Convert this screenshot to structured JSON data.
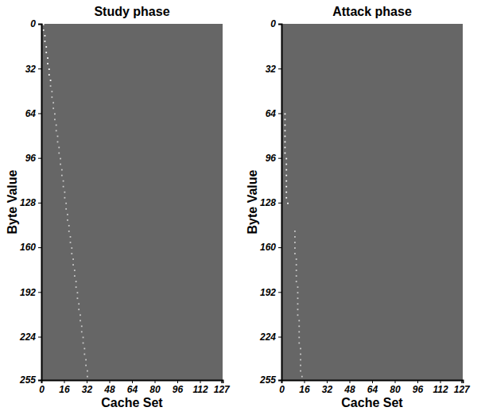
{
  "chart_data": [
    {
      "type": "heatmap",
      "title": "Study phase",
      "x_label": "Cache Set",
      "y_label": "Byte Value",
      "xlim": [
        0,
        128
      ],
      "xticks": [
        0,
        16,
        32,
        48,
        64,
        80,
        96,
        112,
        127
      ],
      "ylim": [
        0,
        255
      ],
      "yticks": [
        0,
        32,
        64,
        96,
        128,
        160,
        192,
        224,
        255
      ],
      "zlim": [
        0,
        1
      ],
      "fill_value": 0.4,
      "cells": [
        [
          1,
          0,
          1
        ],
        [
          1,
          4,
          1
        ],
        [
          2,
          8,
          1
        ],
        [
          2,
          12,
          1
        ],
        [
          3,
          16,
          1
        ],
        [
          3,
          20,
          1
        ],
        [
          4,
          24,
          1
        ],
        [
          4,
          28,
          1
        ],
        [
          5,
          32,
          1
        ],
        [
          5,
          36,
          1
        ],
        [
          6,
          40,
          1
        ],
        [
          6,
          44,
          0.8
        ],
        [
          7,
          48,
          0.8
        ],
        [
          7,
          52,
          0.8
        ],
        [
          8,
          56,
          0.8
        ],
        [
          8,
          60,
          0.8
        ],
        [
          9,
          64,
          0.8
        ],
        [
          9,
          68,
          0.8
        ],
        [
          10,
          72,
          0.8
        ],
        [
          10,
          76,
          0.8
        ],
        [
          11,
          80,
          0.8
        ],
        [
          11,
          84,
          0.8
        ],
        [
          12,
          88,
          0.8
        ],
        [
          12,
          92,
          0.8
        ],
        [
          13,
          96,
          0.8
        ],
        [
          13,
          100,
          0.8
        ],
        [
          14,
          104,
          0.8
        ],
        [
          14,
          108,
          0.8
        ],
        [
          15,
          112,
          0.8
        ],
        [
          15,
          116,
          0.8
        ],
        [
          16,
          120,
          0.8
        ],
        [
          16,
          124,
          0.8
        ],
        [
          17,
          128,
          0.8
        ],
        [
          17,
          132,
          0.8
        ],
        [
          18,
          136,
          0.8
        ],
        [
          18,
          140,
          0.8
        ],
        [
          19,
          144,
          0.8
        ],
        [
          19,
          148,
          0.8
        ],
        [
          20,
          152,
          0.8
        ],
        [
          20,
          156,
          0.8
        ],
        [
          21,
          160,
          0.8
        ],
        [
          21,
          164,
          0.8
        ],
        [
          22,
          168,
          0.8
        ],
        [
          22,
          172,
          0.8
        ],
        [
          23,
          176,
          0.8
        ],
        [
          23,
          180,
          0.8
        ],
        [
          24,
          184,
          0.8
        ],
        [
          24,
          188,
          0.8
        ],
        [
          25,
          192,
          0.8
        ],
        [
          25,
          196,
          0.8
        ],
        [
          26,
          200,
          0.8
        ],
        [
          26,
          204,
          0.8
        ],
        [
          27,
          208,
          0.8
        ],
        [
          27,
          212,
          0.8
        ],
        [
          28,
          216,
          0.8
        ],
        [
          28,
          220,
          0.8
        ],
        [
          29,
          224,
          0.8
        ],
        [
          29,
          228,
          0.8
        ],
        [
          30,
          232,
          0.8
        ],
        [
          30,
          236,
          0.8
        ],
        [
          31,
          240,
          0.8
        ],
        [
          31,
          244,
          0.8
        ],
        [
          32,
          248,
          0.8
        ],
        [
          32,
          252,
          0.8
        ]
      ]
    },
    {
      "type": "heatmap",
      "title": "Attack phase",
      "x_label": "Cache Set",
      "y_label": "Byte Value",
      "xlim": [
        0,
        128
      ],
      "xticks": [
        0,
        16,
        32,
        48,
        64,
        80,
        96,
        112,
        127
      ],
      "ylim": [
        0,
        255
      ],
      "yticks": [
        0,
        32,
        64,
        96,
        128,
        160,
        192,
        224,
        255
      ],
      "zlim": [
        0,
        1
      ],
      "fill_value": 0.4,
      "cells": [
        [
          2,
          64,
          1
        ],
        [
          2,
          68,
          1
        ],
        [
          2,
          72,
          1
        ],
        [
          2,
          76,
          1
        ],
        [
          2,
          80,
          1
        ],
        [
          2,
          84,
          1
        ],
        [
          2,
          88,
          1
        ],
        [
          2,
          92,
          1
        ],
        [
          3,
          96,
          1
        ],
        [
          3,
          100,
          1
        ],
        [
          3,
          104,
          1
        ],
        [
          3,
          108,
          1
        ],
        [
          3,
          112,
          1
        ],
        [
          3,
          116,
          1
        ],
        [
          3,
          120,
          1
        ],
        [
          3,
          124,
          1
        ],
        [
          4,
          128,
          1
        ],
        [
          9,
          148,
          0.8
        ],
        [
          9,
          152,
          0.8
        ],
        [
          9,
          156,
          0.8
        ],
        [
          9,
          160,
          0.8
        ],
        [
          9,
          164,
          0.8
        ],
        [
          10,
          168,
          0.8
        ],
        [
          10,
          172,
          0.8
        ],
        [
          10,
          176,
          0.8
        ],
        [
          10,
          180,
          0.8
        ],
        [
          10,
          184,
          0.8
        ],
        [
          11,
          188,
          0.8
        ],
        [
          11,
          192,
          0.8
        ],
        [
          11,
          196,
          0.8
        ],
        [
          11,
          200,
          0.8
        ],
        [
          11,
          204,
          0.8
        ],
        [
          11,
          208,
          0.8
        ],
        [
          12,
          212,
          0.8
        ],
        [
          12,
          216,
          0.8
        ],
        [
          12,
          220,
          0.8
        ],
        [
          12,
          224,
          0.8
        ],
        [
          12,
          228,
          0.8
        ],
        [
          13,
          232,
          0.8
        ],
        [
          13,
          236,
          0.8
        ],
        [
          13,
          240,
          0.8
        ],
        [
          13,
          244,
          0.8
        ],
        [
          13,
          248,
          0.8
        ],
        [
          14,
          252,
          0.8
        ]
      ]
    }
  ]
}
